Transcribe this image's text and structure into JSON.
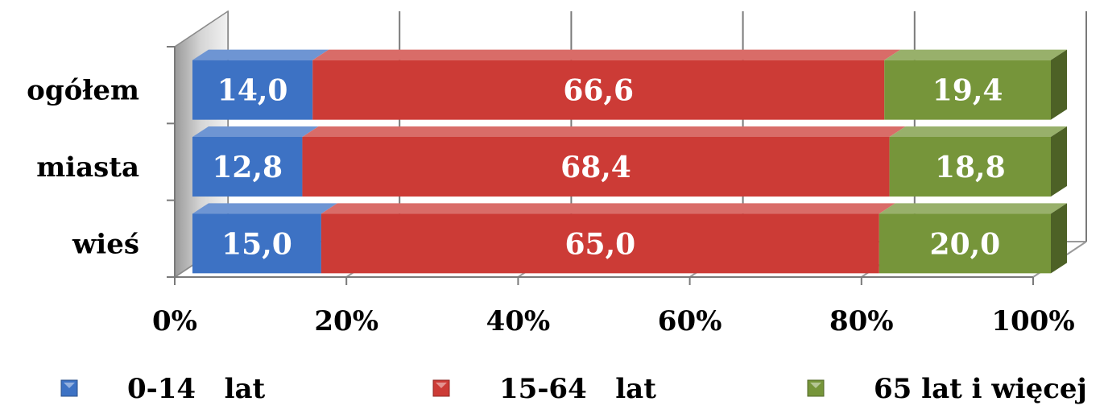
{
  "chart_data": {
    "type": "bar",
    "orientation": "horizontal",
    "stacked": "percent",
    "three_d": true,
    "categories": [
      "ogółem",
      "miasta",
      "wieś"
    ],
    "series": [
      {
        "name": "0-14   lat",
        "values": [
          14.0,
          12.8,
          15.0
        ],
        "labels": [
          "14,0",
          "12,8",
          "15,0"
        ],
        "color": "#3d72c4"
      },
      {
        "name": "15-64   lat",
        "values": [
          66.6,
          68.4,
          65.0
        ],
        "labels": [
          "66,6",
          "68,4",
          "65,0"
        ],
        "color": "#cc3b36"
      },
      {
        "name": "65 lat i więcej",
        "values": [
          19.4,
          18.8,
          20.0
        ],
        "labels": [
          "19,4",
          "18,8",
          "20,0"
        ],
        "color": "#76953a"
      }
    ],
    "x_ticks": [
      "0%",
      "20%",
      "40%",
      "60%",
      "80%",
      "100%"
    ],
    "xlim": [
      0,
      100
    ],
    "grid": true,
    "legend": "bottom"
  }
}
